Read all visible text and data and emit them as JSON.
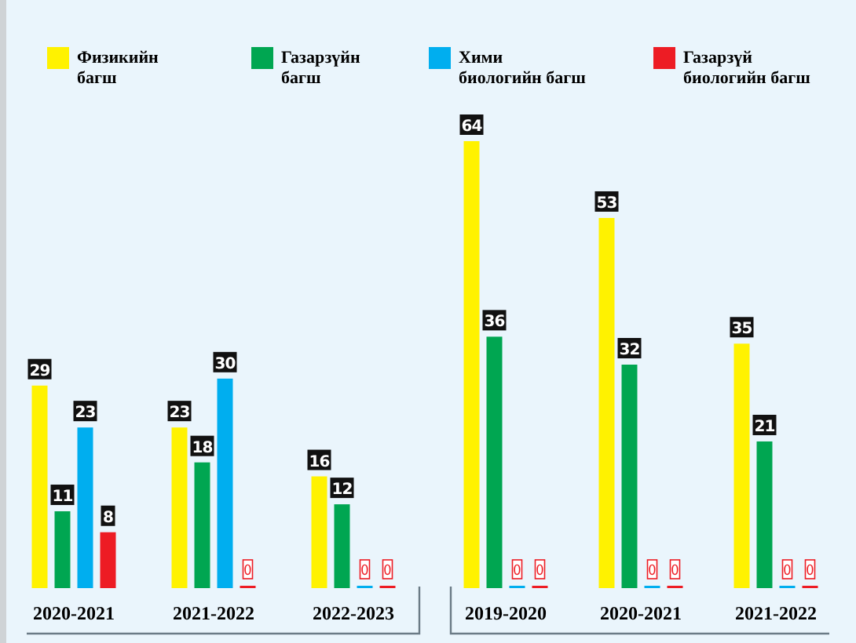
{
  "chart_data": {
    "type": "bar",
    "categories": [
      "2020-2021",
      "2021-2022",
      "2022-2023",
      "2019-2020",
      "2020-2021",
      "2021-2022"
    ],
    "series": [
      {
        "name": "Физикийн багш",
        "color": "#fff200",
        "values": [
          29,
          23,
          16,
          64,
          53,
          35
        ]
      },
      {
        "name": "Газарзүйн багш",
        "color": "#00a651",
        "values": [
          11,
          18,
          12,
          36,
          32,
          21
        ]
      },
      {
        "name": "Хими биологийн багш",
        "color": "#00aeef",
        "values": [
          23,
          30,
          0,
          0,
          0,
          0
        ]
      },
      {
        "name": "Газарзүй биологийн багш",
        "color": "#ed1c24",
        "values": [
          8,
          0,
          0,
          0,
          0,
          0
        ]
      }
    ],
    "data_labels": true,
    "legend": "top"
  }
}
